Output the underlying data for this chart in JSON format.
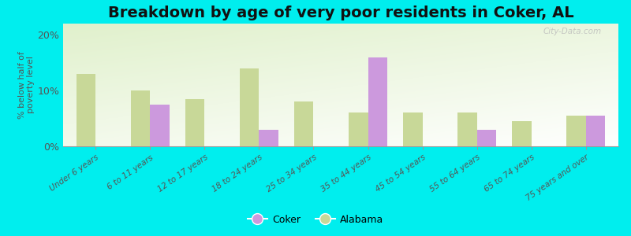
{
  "title": "Breakdown by age of very poor residents in Coker, AL",
  "ylabel": "% below half of\npoverty level",
  "categories": [
    "Under 6 years",
    "6 to 11 years",
    "12 to 17 years",
    "18 to 24 years",
    "25 to 34 years",
    "35 to 44 years",
    "45 to 54 years",
    "55 to 64 years",
    "65 to 74 years",
    "75 years and over"
  ],
  "coker_values": [
    0,
    7.5,
    0,
    3.0,
    0,
    16.0,
    0,
    3.0,
    0,
    5.5
  ],
  "alabama_values": [
    13.0,
    10.0,
    8.5,
    14.0,
    8.0,
    6.0,
    6.0,
    6.0,
    4.5,
    5.5
  ],
  "coker_color": "#cc99dd",
  "alabama_color": "#c8d898",
  "background_color": "#00eeee",
  "ylim": [
    0,
    22
  ],
  "yticks": [
    0,
    10,
    20
  ],
  "ytick_labels": [
    "0%",
    "10%",
    "20%"
  ],
  "bar_width": 0.35,
  "title_fontsize": 14,
  "legend_labels": [
    "Coker",
    "Alabama"
  ],
  "watermark": "City-Data.com"
}
